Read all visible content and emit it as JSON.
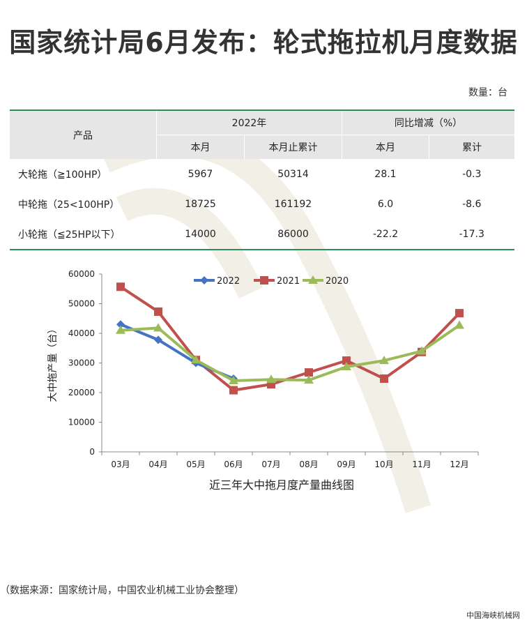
{
  "header": {
    "title": "国家统计局6月发布：轮式拖拉机月度数据",
    "unit": "数量：台"
  },
  "table": {
    "col_product": "产品",
    "group_2022": "2022年",
    "group_yoy": "同比增减（%）",
    "sub_month": "本月",
    "sub_cumulative": "本月止累计",
    "sub_month2": "本月",
    "sub_total": "累计",
    "rows": [
      {
        "name": "大轮拖（≧100HP）",
        "month": "5967",
        "cumulative": "50314",
        "yoy_month": "28.1",
        "yoy_cum": "-0.3"
      },
      {
        "name": "中轮拖（25<100HP）",
        "month": "18725",
        "cumulative": "161192",
        "yoy_month": "6.0",
        "yoy_cum": "-8.6"
      },
      {
        "name": "小轮拖（≦25HP以下）",
        "month": "14000",
        "cumulative": "86000",
        "yoy_month": "-22.2",
        "yoy_cum": "-17.3"
      }
    ]
  },
  "chart_data": {
    "type": "line",
    "title": "近三年大中拖月度产量曲线图",
    "ylabel": "大中拖产量（台）",
    "xlabel": "",
    "categories": [
      "03月",
      "04月",
      "05月",
      "06月",
      "07月",
      "08月",
      "09月",
      "10月",
      "11月",
      "12月"
    ],
    "ylim": [
      0,
      60000
    ],
    "yticks": [
      0,
      10000,
      20000,
      30000,
      40000,
      50000,
      60000
    ],
    "grid": false,
    "legend": "top",
    "series": [
      {
        "name": "2022",
        "color": "#4472c4",
        "marker": "diamond",
        "values": [
          43000,
          37800,
          30000,
          24700,
          null,
          null,
          null,
          null,
          null,
          null
        ]
      },
      {
        "name": "2021",
        "color": "#c0504d",
        "marker": "square",
        "values": [
          55700,
          47300,
          31000,
          20800,
          22800,
          26800,
          30800,
          24700,
          33700,
          46800
        ]
      },
      {
        "name": "2020",
        "color": "#9bbb59",
        "marker": "triangle",
        "values": [
          41000,
          41800,
          31000,
          24000,
          24400,
          24200,
          28700,
          30800,
          34000,
          42700
        ]
      }
    ]
  },
  "footer": {
    "source": "（数据来源：国家统计局，中国农业机械工业协会整理）",
    "credit": "中国海峡机械网"
  }
}
